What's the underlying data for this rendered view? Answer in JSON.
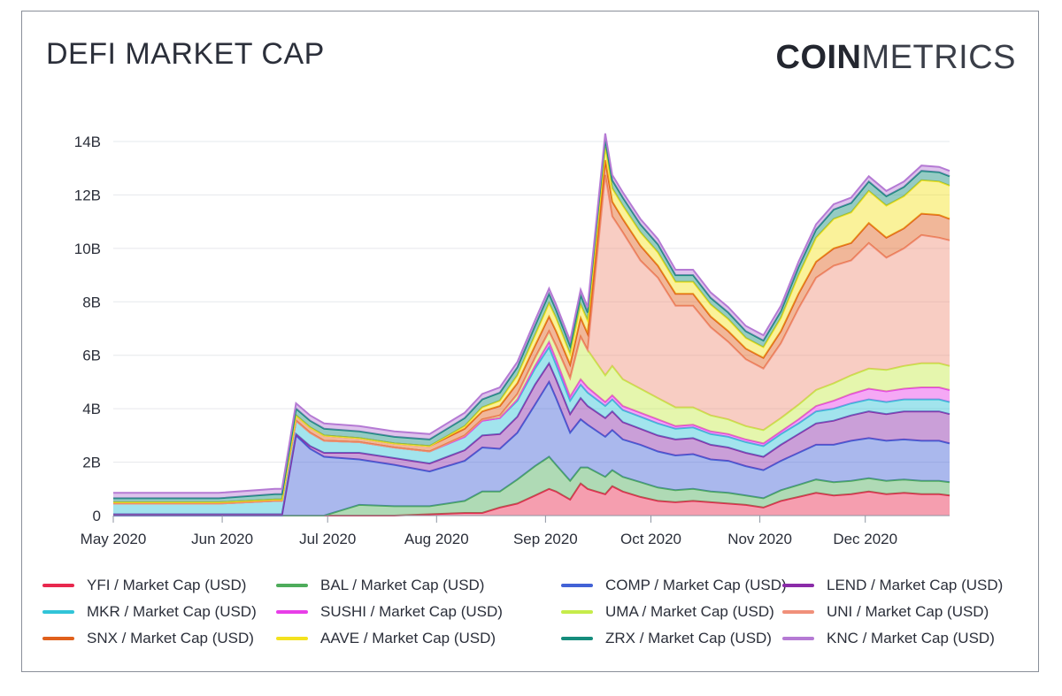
{
  "header": {
    "title": "DEFI MARKET CAP",
    "logo_bold": "COIN",
    "logo_light": "METRICS"
  },
  "colors": {
    "YFI": "#e8284e",
    "BAL": "#4eac5b",
    "COMP": "#4262d6",
    "LEND": "#8a2ba8",
    "MKR": "#31c4d8",
    "SUSHI": "#e83ee8",
    "UMA": "#c6ec4a",
    "UNI": "#f0907a",
    "SNX": "#e0601c",
    "AAVE": "#f4e21e",
    "ZRX": "#158c7c",
    "KNC": "#b57ad4"
  },
  "chart_data": {
    "type": "area",
    "stacked": true,
    "title": "DEFI MARKET CAP",
    "xlabel": "",
    "ylabel": "",
    "ylim": [
      0,
      14
    ],
    "y_unit": "B USD",
    "y_ticks": [
      {
        "value": 0,
        "label": "0"
      },
      {
        "value": 2,
        "label": "2B"
      },
      {
        "value": 4,
        "label": "4B"
      },
      {
        "value": 6,
        "label": "6B"
      },
      {
        "value": 8,
        "label": "8B"
      },
      {
        "value": 10,
        "label": "10B"
      },
      {
        "value": 12,
        "label": "12B"
      },
      {
        "value": 14,
        "label": "14B"
      }
    ],
    "x_unit": "days since 2020-05-01",
    "xlim": [
      0,
      238
    ],
    "x_ticks": [
      {
        "value": 0,
        "label": "May 2020"
      },
      {
        "value": 31,
        "label": "Jun 2020"
      },
      {
        "value": 61,
        "label": "Jul 2020"
      },
      {
        "value": 92,
        "label": "Aug 2020"
      },
      {
        "value": 123,
        "label": "Sep 2020"
      },
      {
        "value": 153,
        "label": "Oct 2020"
      },
      {
        "value": 184,
        "label": "Nov 2020"
      },
      {
        "value": 214,
        "label": "Dec 2020"
      }
    ],
    "x": [
      0,
      15,
      30,
      46,
      48,
      52,
      56,
      60,
      70,
      80,
      90,
      100,
      105,
      110,
      115,
      120,
      124,
      126,
      130,
      133,
      135,
      140,
      142,
      145,
      150,
      155,
      160,
      165,
      170,
      175,
      180,
      185,
      190,
      195,
      200,
      205,
      210,
      215,
      220,
      225,
      230,
      235,
      238
    ],
    "series": [
      {
        "name": "YFI / Market Cap (USD)",
        "key": "YFI",
        "values": [
          0,
          0,
          0,
          0,
          0,
          0,
          0,
          0,
          0,
          0,
          0.05,
          0.1,
          0.1,
          0.3,
          0.45,
          0.75,
          1.0,
          0.9,
          0.6,
          1.2,
          1.0,
          0.8,
          1.1,
          0.9,
          0.7,
          0.55,
          0.5,
          0.55,
          0.5,
          0.45,
          0.4,
          0.3,
          0.55,
          0.7,
          0.85,
          0.75,
          0.8,
          0.9,
          0.8,
          0.85,
          0.8,
          0.8,
          0.75
        ]
      },
      {
        "name": "BAL / Market Cap (USD)",
        "key": "BAL",
        "values": [
          0,
          0,
          0,
          0,
          0,
          0,
          0,
          0,
          0.4,
          0.35,
          0.3,
          0.45,
          0.8,
          0.6,
          0.9,
          1.1,
          1.2,
          1.0,
          0.7,
          0.6,
          0.8,
          0.65,
          0.6,
          0.55,
          0.55,
          0.5,
          0.45,
          0.45,
          0.4,
          0.4,
          0.35,
          0.35,
          0.4,
          0.45,
          0.5,
          0.5,
          0.5,
          0.5,
          0.5,
          0.5,
          0.5,
          0.5,
          0.5
        ]
      },
      {
        "name": "COMP / Market Cap (USD)",
        "key": "COMP",
        "values": [
          0,
          0,
          0,
          0,
          0,
          3.0,
          2.5,
          2.2,
          1.7,
          1.55,
          1.3,
          1.5,
          1.65,
          1.6,
          1.75,
          2.3,
          2.8,
          2.5,
          1.8,
          1.8,
          1.6,
          1.5,
          1.5,
          1.4,
          1.4,
          1.35,
          1.3,
          1.3,
          1.2,
          1.2,
          1.1,
          1.05,
          1.1,
          1.2,
          1.3,
          1.4,
          1.5,
          1.5,
          1.5,
          1.5,
          1.5,
          1.5,
          1.45
        ]
      },
      {
        "name": "LEND / Market Cap (USD)",
        "key": "LEND",
        "values": [
          0.05,
          0.05,
          0.05,
          0.05,
          0.05,
          0.05,
          0.1,
          0.15,
          0.25,
          0.25,
          0.3,
          0.4,
          0.45,
          0.55,
          0.6,
          0.75,
          0.7,
          0.7,
          0.7,
          0.8,
          0.7,
          0.7,
          0.7,
          0.65,
          0.6,
          0.6,
          0.6,
          0.6,
          0.55,
          0.5,
          0.5,
          0.5,
          0.6,
          0.7,
          0.8,
          0.9,
          0.95,
          1.0,
          1.0,
          1.05,
          1.1,
          1.1,
          1.1
        ]
      },
      {
        "name": "MKR / Market Cap (USD)",
        "key": "MKR",
        "values": [
          0.4,
          0.4,
          0.4,
          0.5,
          0.5,
          0.5,
          0.5,
          0.45,
          0.4,
          0.4,
          0.45,
          0.5,
          0.55,
          0.6,
          0.6,
          0.6,
          0.6,
          0.55,
          0.5,
          0.5,
          0.5,
          0.45,
          0.45,
          0.45,
          0.45,
          0.45,
          0.4,
          0.4,
          0.4,
          0.4,
          0.4,
          0.4,
          0.4,
          0.4,
          0.45,
          0.45,
          0.45,
          0.45,
          0.45,
          0.45,
          0.45,
          0.45,
          0.45
        ]
      },
      {
        "name": "SUSHI / Market Cap (USD)",
        "key": "SUSHI",
        "values": [
          0,
          0,
          0,
          0,
          0,
          0,
          0,
          0,
          0,
          0,
          0,
          0,
          0,
          0,
          0.05,
          0.1,
          0.2,
          0.2,
          0.15,
          0.2,
          0.2,
          0.15,
          0.15,
          0.15,
          0.15,
          0.15,
          0.1,
          0.1,
          0.1,
          0.1,
          0.1,
          0.1,
          0.1,
          0.15,
          0.2,
          0.3,
          0.35,
          0.4,
          0.4,
          0.4,
          0.45,
          0.45,
          0.45
        ]
      },
      {
        "name": "UMA / Market Cap (USD)",
        "key": "UMA",
        "values": [
          0,
          0,
          0,
          0,
          0,
          0,
          0,
          0,
          0,
          0,
          0,
          0.05,
          0.05,
          0.1,
          0.2,
          0.3,
          0.4,
          0.5,
          0.7,
          1.6,
          1.4,
          1.0,
          1.1,
          1.0,
          0.9,
          0.8,
          0.7,
          0.65,
          0.6,
          0.55,
          0.5,
          0.5,
          0.5,
          0.55,
          0.6,
          0.65,
          0.7,
          0.75,
          0.8,
          0.85,
          0.9,
          0.9,
          0.9
        ]
      },
      {
        "name": "UNI / Market Cap (USD)",
        "key": "UNI",
        "values": [
          0,
          0,
          0,
          0,
          0,
          0,
          0,
          0,
          0,
          0,
          0,
          0,
          0,
          0,
          0,
          0,
          0,
          0,
          0,
          0,
          0,
          7.5,
          5.6,
          5.5,
          4.8,
          4.5,
          3.8,
          3.8,
          3.3,
          2.9,
          2.5,
          2.3,
          2.8,
          3.6,
          4.2,
          4.4,
          4.3,
          4.7,
          4.2,
          4.4,
          4.8,
          4.7,
          4.7
        ]
      },
      {
        "name": "SNX / Market Cap (USD)",
        "key": "SNX",
        "values": [
          0.05,
          0.05,
          0.05,
          0.05,
          0.05,
          0.2,
          0.2,
          0.2,
          0.15,
          0.15,
          0.2,
          0.25,
          0.3,
          0.35,
          0.4,
          0.45,
          0.55,
          0.55,
          0.5,
          0.7,
          0.6,
          0.55,
          0.55,
          0.5,
          0.55,
          0.45,
          0.45,
          0.45,
          0.4,
          0.4,
          0.4,
          0.4,
          0.45,
          0.55,
          0.6,
          0.65,
          0.65,
          0.75,
          0.75,
          0.75,
          0.8,
          0.85,
          0.8
        ]
      },
      {
        "name": "AAVE / Market Cap (USD)",
        "key": "AAVE",
        "values": [
          0,
          0,
          0,
          0,
          0,
          0,
          0,
          0,
          0,
          0,
          0,
          0.1,
          0.15,
          0.2,
          0.3,
          0.4,
          0.5,
          0.5,
          0.4,
          0.5,
          0.5,
          0.5,
          0.5,
          0.5,
          0.5,
          0.5,
          0.45,
          0.45,
          0.45,
          0.45,
          0.4,
          0.4,
          0.5,
          0.7,
          0.9,
          1.1,
          1.15,
          1.2,
          1.2,
          1.2,
          1.25,
          1.25,
          1.25
        ]
      },
      {
        "name": "ZRX / Market Cap (USD)",
        "key": "ZRX",
        "values": [
          0.15,
          0.15,
          0.15,
          0.2,
          0.2,
          0.25,
          0.25,
          0.25,
          0.25,
          0.25,
          0.25,
          0.3,
          0.3,
          0.3,
          0.3,
          0.35,
          0.35,
          0.3,
          0.3,
          0.35,
          0.3,
          0.3,
          0.3,
          0.3,
          0.3,
          0.3,
          0.25,
          0.25,
          0.25,
          0.25,
          0.25,
          0.25,
          0.25,
          0.3,
          0.3,
          0.35,
          0.35,
          0.35,
          0.35,
          0.35,
          0.35,
          0.35,
          0.35
        ]
      },
      {
        "name": "KNC / Market Cap (USD)",
        "key": "KNC",
        "values": [
          0.2,
          0.2,
          0.2,
          0.2,
          0.2,
          0.2,
          0.2,
          0.2,
          0.2,
          0.2,
          0.2,
          0.2,
          0.2,
          0.2,
          0.2,
          0.2,
          0.2,
          0.2,
          0.2,
          0.2,
          0.2,
          0.2,
          0.2,
          0.2,
          0.2,
          0.2,
          0.2,
          0.2,
          0.2,
          0.2,
          0.2,
          0.2,
          0.2,
          0.2,
          0.2,
          0.2,
          0.2,
          0.2,
          0.2,
          0.2,
          0.2,
          0.2,
          0.2
        ]
      }
    ]
  },
  "legend": [
    {
      "key": "YFI",
      "label": "YFI / Market Cap (USD)"
    },
    {
      "key": "BAL",
      "label": "BAL / Market Cap (USD)"
    },
    {
      "key": "COMP",
      "label": "COMP / Market Cap (USD)"
    },
    {
      "key": "LEND",
      "label": "LEND / Market Cap (USD)"
    },
    {
      "key": "MKR",
      "label": "MKR / Market Cap (USD)"
    },
    {
      "key": "SUSHI",
      "label": "SUSHI / Market Cap (USD)"
    },
    {
      "key": "UMA",
      "label": "UMA / Market Cap (USD)"
    },
    {
      "key": "UNI",
      "label": "UNI / Market Cap (USD)"
    },
    {
      "key": "SNX",
      "label": "SNX / Market Cap (USD)"
    },
    {
      "key": "AAVE",
      "label": "AAVE / Market Cap (USD)"
    },
    {
      "key": "ZRX",
      "label": "ZRX / Market Cap (USD)"
    },
    {
      "key": "KNC",
      "label": "KNC / Market Cap (USD)"
    }
  ]
}
